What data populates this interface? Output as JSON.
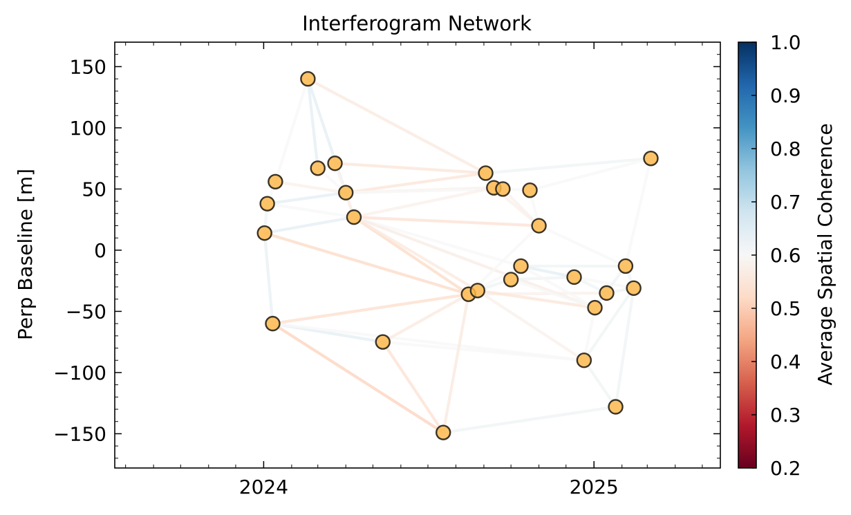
{
  "chart_data": {
    "type": "scatter",
    "title": "Interferogram Network",
    "xlabel": "",
    "ylabel": "Perp Baseline [m]",
    "xlim": [
      "2023-07-20",
      "2025-05-21"
    ],
    "ylim": [
      -178,
      170
    ],
    "xticks": [
      "2024-01-01",
      "2025-01-01"
    ],
    "xtick_labels": [
      "2024",
      "2025"
    ],
    "yticks": [
      150,
      100,
      50,
      0,
      -50,
      -100,
      -150
    ],
    "ytick_labels": [
      "150",
      "100",
      "50",
      "0",
      "−50",
      "−100",
      "−150"
    ],
    "colorbar": {
      "label": "Average Spatial Coherence",
      "range": [
        0.2,
        1.0
      ],
      "ticks": [
        1.0,
        0.9,
        0.8,
        0.7,
        0.6,
        0.5,
        0.4,
        0.3,
        0.2
      ],
      "tick_labels": [
        "1.0",
        "0.9",
        "0.8",
        "0.7",
        "0.6",
        "0.5",
        "0.4",
        "0.3",
        "0.2"
      ],
      "colormap": "RdBu"
    },
    "acquisitions": [
      {
        "date": "2024-01-02",
        "bperp": 14
      },
      {
        "date": "2024-01-05",
        "bperp": 38
      },
      {
        "date": "2024-01-14",
        "bperp": 56
      },
      {
        "date": "2024-01-11",
        "bperp": -60
      },
      {
        "date": "2024-02-19",
        "bperp": 140
      },
      {
        "date": "2024-03-01",
        "bperp": 67
      },
      {
        "date": "2024-03-20",
        "bperp": 71
      },
      {
        "date": "2024-04-01",
        "bperp": 47
      },
      {
        "date": "2024-04-10",
        "bperp": 27
      },
      {
        "date": "2024-05-12",
        "bperp": -75
      },
      {
        "date": "2024-07-18",
        "bperp": -149
      },
      {
        "date": "2024-08-15",
        "bperp": -36
      },
      {
        "date": "2024-08-25",
        "bperp": -33
      },
      {
        "date": "2024-09-03",
        "bperp": 63
      },
      {
        "date": "2024-09-12",
        "bperp": 51
      },
      {
        "date": "2024-09-22",
        "bperp": 50
      },
      {
        "date": "2024-10-01",
        "bperp": -24
      },
      {
        "date": "2024-10-12",
        "bperp": -13
      },
      {
        "date": "2024-10-22",
        "bperp": 49
      },
      {
        "date": "2024-11-01",
        "bperp": 20
      },
      {
        "date": "2024-12-10",
        "bperp": -22
      },
      {
        "date": "2024-12-21",
        "bperp": -90
      },
      {
        "date": "2025-01-02",
        "bperp": -47
      },
      {
        "date": "2025-01-15",
        "bperp": -35
      },
      {
        "date": "2025-01-25",
        "bperp": -128
      },
      {
        "date": "2025-02-05",
        "bperp": -13
      },
      {
        "date": "2025-02-14",
        "bperp": -31
      },
      {
        "date": "2025-03-05",
        "bperp": 75
      }
    ],
    "pairs": [
      [
        0,
        1,
        0.62
      ],
      [
        0,
        8,
        0.64
      ],
      [
        0,
        3,
        0.63
      ],
      [
        0,
        11,
        0.52
      ],
      [
        1,
        2,
        0.6
      ],
      [
        1,
        7,
        0.64
      ],
      [
        1,
        8,
        0.6
      ],
      [
        2,
        4,
        0.6
      ],
      [
        2,
        7,
        0.58
      ],
      [
        3,
        11,
        0.53
      ],
      [
        3,
        10,
        0.51
      ],
      [
        3,
        9,
        0.64
      ],
      [
        3,
        21,
        0.6
      ],
      [
        4,
        5,
        0.64
      ],
      [
        4,
        7,
        0.64
      ],
      [
        4,
        13,
        0.56
      ],
      [
        5,
        7,
        0.6
      ],
      [
        6,
        13,
        0.55
      ],
      [
        6,
        8,
        0.59
      ],
      [
        7,
        13,
        0.55
      ],
      [
        7,
        14,
        0.58
      ],
      [
        7,
        15,
        0.6
      ],
      [
        7,
        8,
        0.57
      ],
      [
        8,
        14,
        0.58
      ],
      [
        8,
        19,
        0.54
      ],
      [
        8,
        11,
        0.52
      ],
      [
        8,
        12,
        0.56
      ],
      [
        8,
        17,
        0.6
      ],
      [
        8,
        22,
        0.57
      ],
      [
        9,
        10,
        0.54
      ],
      [
        9,
        21,
        0.6
      ],
      [
        9,
        11,
        0.56
      ],
      [
        10,
        11,
        0.56
      ],
      [
        10,
        24,
        0.62
      ],
      [
        11,
        12,
        0.58
      ],
      [
        11,
        17,
        0.6
      ],
      [
        11,
        23,
        0.58
      ],
      [
        11,
        19,
        0.6
      ],
      [
        12,
        22,
        0.55
      ],
      [
        12,
        16,
        0.62
      ],
      [
        12,
        21,
        0.58
      ],
      [
        13,
        15,
        0.6
      ],
      [
        13,
        27,
        0.62
      ],
      [
        14,
        19,
        0.58
      ],
      [
        14,
        15,
        0.58
      ],
      [
        15,
        18,
        0.6
      ],
      [
        15,
        19,
        0.58
      ],
      [
        16,
        17,
        0.62
      ],
      [
        16,
        20,
        0.62
      ],
      [
        16,
        22,
        0.6
      ],
      [
        17,
        25,
        0.62
      ],
      [
        17,
        20,
        0.64
      ],
      [
        17,
        22,
        0.6
      ],
      [
        18,
        19,
        0.6
      ],
      [
        18,
        27,
        0.6
      ],
      [
        19,
        25,
        0.6
      ],
      [
        20,
        23,
        0.62
      ],
      [
        20,
        26,
        0.6
      ],
      [
        21,
        22,
        0.6
      ],
      [
        21,
        24,
        0.62
      ],
      [
        21,
        26,
        0.62
      ],
      [
        22,
        23,
        0.62
      ],
      [
        22,
        25,
        0.62
      ],
      [
        23,
        26,
        0.62
      ],
      [
        24,
        26,
        0.62
      ],
      [
        25,
        26,
        0.62
      ],
      [
        25,
        27,
        0.6
      ]
    ],
    "marker_color": "#fdb94e",
    "marker_edge": "#3a3326",
    "grid": false
  }
}
